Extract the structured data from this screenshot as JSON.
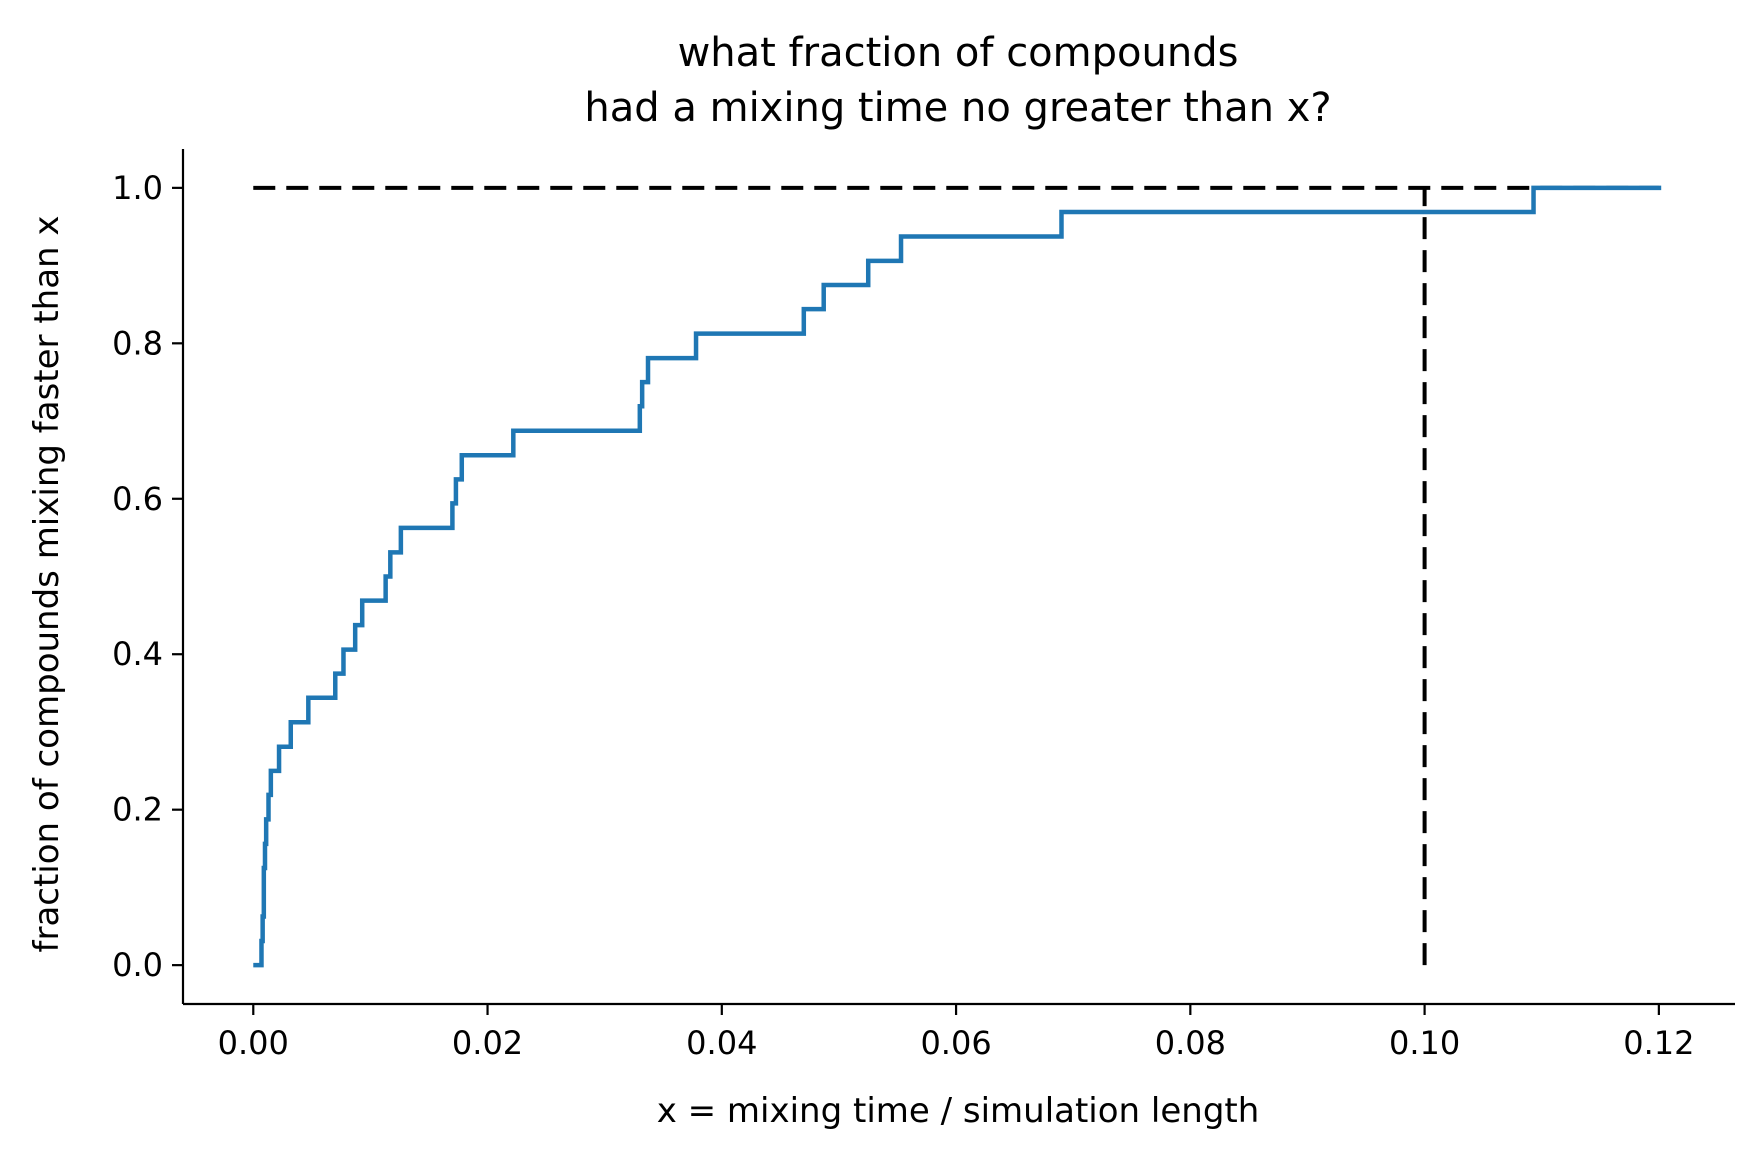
{
  "chart_data": {
    "type": "line",
    "title_lines": [
      "what fraction of compounds",
      "had a mixing time no greater than x?"
    ],
    "xlabel": "x = mixing time / simulation length",
    "ylabel": "fraction of compounds mixing faster than x",
    "xlim": [
      -0.006,
      0.1265
    ],
    "ylim": [
      -0.05,
      1.05
    ],
    "x_ticks": [
      0.0,
      0.02,
      0.04,
      0.06,
      0.08,
      0.1,
      0.12
    ],
    "x_tick_labels": [
      "0.00",
      "0.02",
      "0.04",
      "0.06",
      "0.08",
      "0.10",
      "0.12"
    ],
    "y_ticks": [
      0.0,
      0.2,
      0.4,
      0.6,
      0.8,
      1.0
    ],
    "y_tick_labels": [
      "0.0",
      "0.2",
      "0.4",
      "0.6",
      "0.8",
      "1.0"
    ],
    "grid": false,
    "series": [
      {
        "color": "#1f77b4",
        "step": "post",
        "x": [
          0.0,
          0.0007,
          0.0008,
          0.0009,
          0.001,
          0.0011,
          0.0013,
          0.0015,
          0.0022,
          0.0032,
          0.0047,
          0.007,
          0.0077,
          0.0087,
          0.0093,
          0.0113,
          0.0117,
          0.0126,
          0.017,
          0.0173,
          0.0178,
          0.0222,
          0.033,
          0.0332,
          0.0337,
          0.0378,
          0.047,
          0.0487,
          0.0525,
          0.0553,
          0.069,
          0.1093,
          0.1202
        ],
        "y": [
          0.0,
          0.031,
          0.0625,
          0.125,
          0.156,
          0.1875,
          0.219,
          0.25,
          0.281,
          0.3125,
          0.344,
          0.375,
          0.406,
          0.4375,
          0.469,
          0.5,
          0.531,
          0.5625,
          0.594,
          0.625,
          0.656,
          0.6875,
          0.719,
          0.75,
          0.781,
          0.8125,
          0.844,
          0.875,
          0.906,
          0.9375,
          0.969,
          1.0,
          1.0
        ]
      }
    ],
    "reference_lines": [
      {
        "kind": "horizontal",
        "y": 1.0,
        "x_from": 0.0,
        "x_to": 0.12,
        "style": "dashed",
        "color": "#000000"
      },
      {
        "kind": "vertical",
        "x": 0.1,
        "y_from": 0.0,
        "y_to": 1.0,
        "style": "dashed",
        "color": "#000000"
      }
    ],
    "spines": {
      "top": false,
      "right": false
    }
  }
}
